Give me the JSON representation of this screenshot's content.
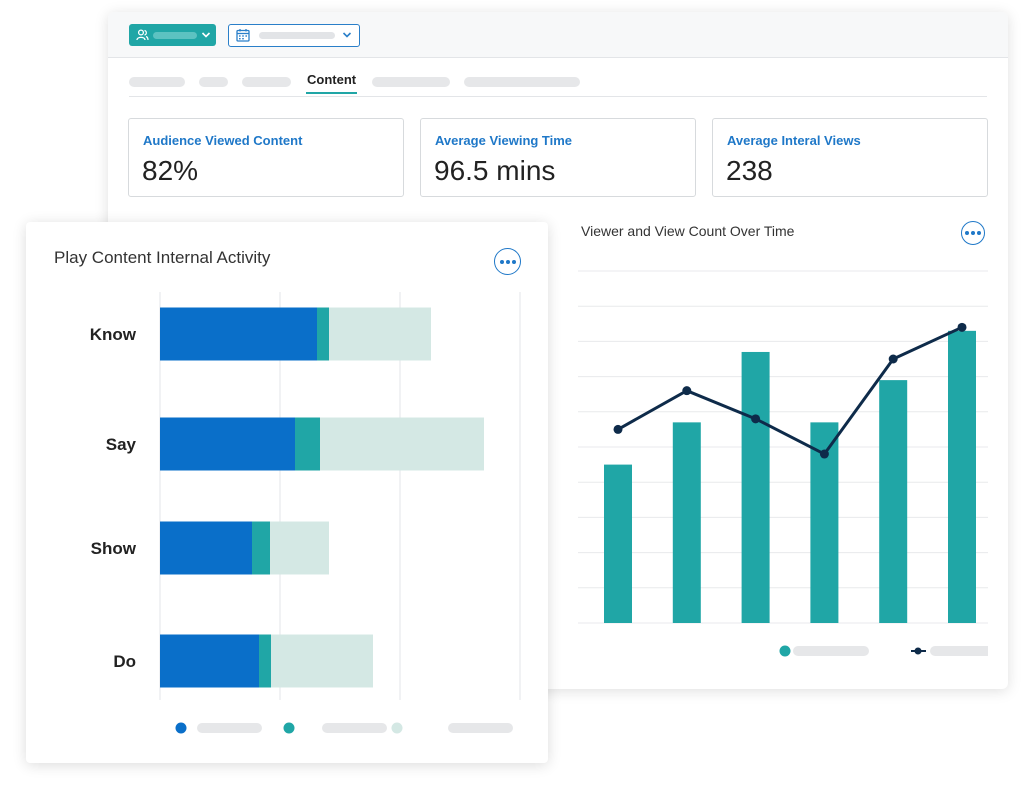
{
  "tabs": {
    "active_label": "Content"
  },
  "cards": [
    {
      "label": "Audience Viewed Content",
      "value": "82%"
    },
    {
      "label": "Average Viewing Time",
      "value": "96.5 mins"
    },
    {
      "label": "Average Interal Views",
      "value": "238"
    }
  ],
  "colors": {
    "teal": "#20a6a6",
    "blue": "#0a6fc9",
    "light_teal": "#d4e8e4",
    "navy": "#0e2b4a",
    "accent_link": "#1f78c8"
  },
  "icons": {
    "audience": "people-icon",
    "calendar": "calendar-icon",
    "chevron": "chevron-down-icon",
    "more": "more-options-icon"
  },
  "chart_data": [
    {
      "type": "bar",
      "title": "Viewer and View Count Over Time",
      "series": [
        {
          "kind": "bar",
          "values": [
            4.5,
            5.7,
            7.7,
            5.7,
            6.9,
            8.3
          ]
        },
        {
          "kind": "line",
          "values": [
            5.5,
            6.6,
            5.8,
            4.8,
            7.5,
            8.4
          ]
        }
      ],
      "ylim": [
        0,
        10
      ],
      "grid": true,
      "legend": "bottom"
    },
    {
      "type": "bar",
      "orientation": "horizontal",
      "stacked": true,
      "title": "Play Content Internal Activity",
      "categories": [
        "Know",
        "Say",
        "Show",
        "Do"
      ],
      "series": [
        {
          "values": [
            157,
            135,
            92,
            99
          ]
        },
        {
          "values": [
            12,
            25,
            18,
            12
          ]
        },
        {
          "values": [
            102,
            164,
            59,
            102
          ]
        }
      ],
      "xlim": [
        0,
        360
      ],
      "grid": true,
      "legend": "bottom"
    }
  ]
}
